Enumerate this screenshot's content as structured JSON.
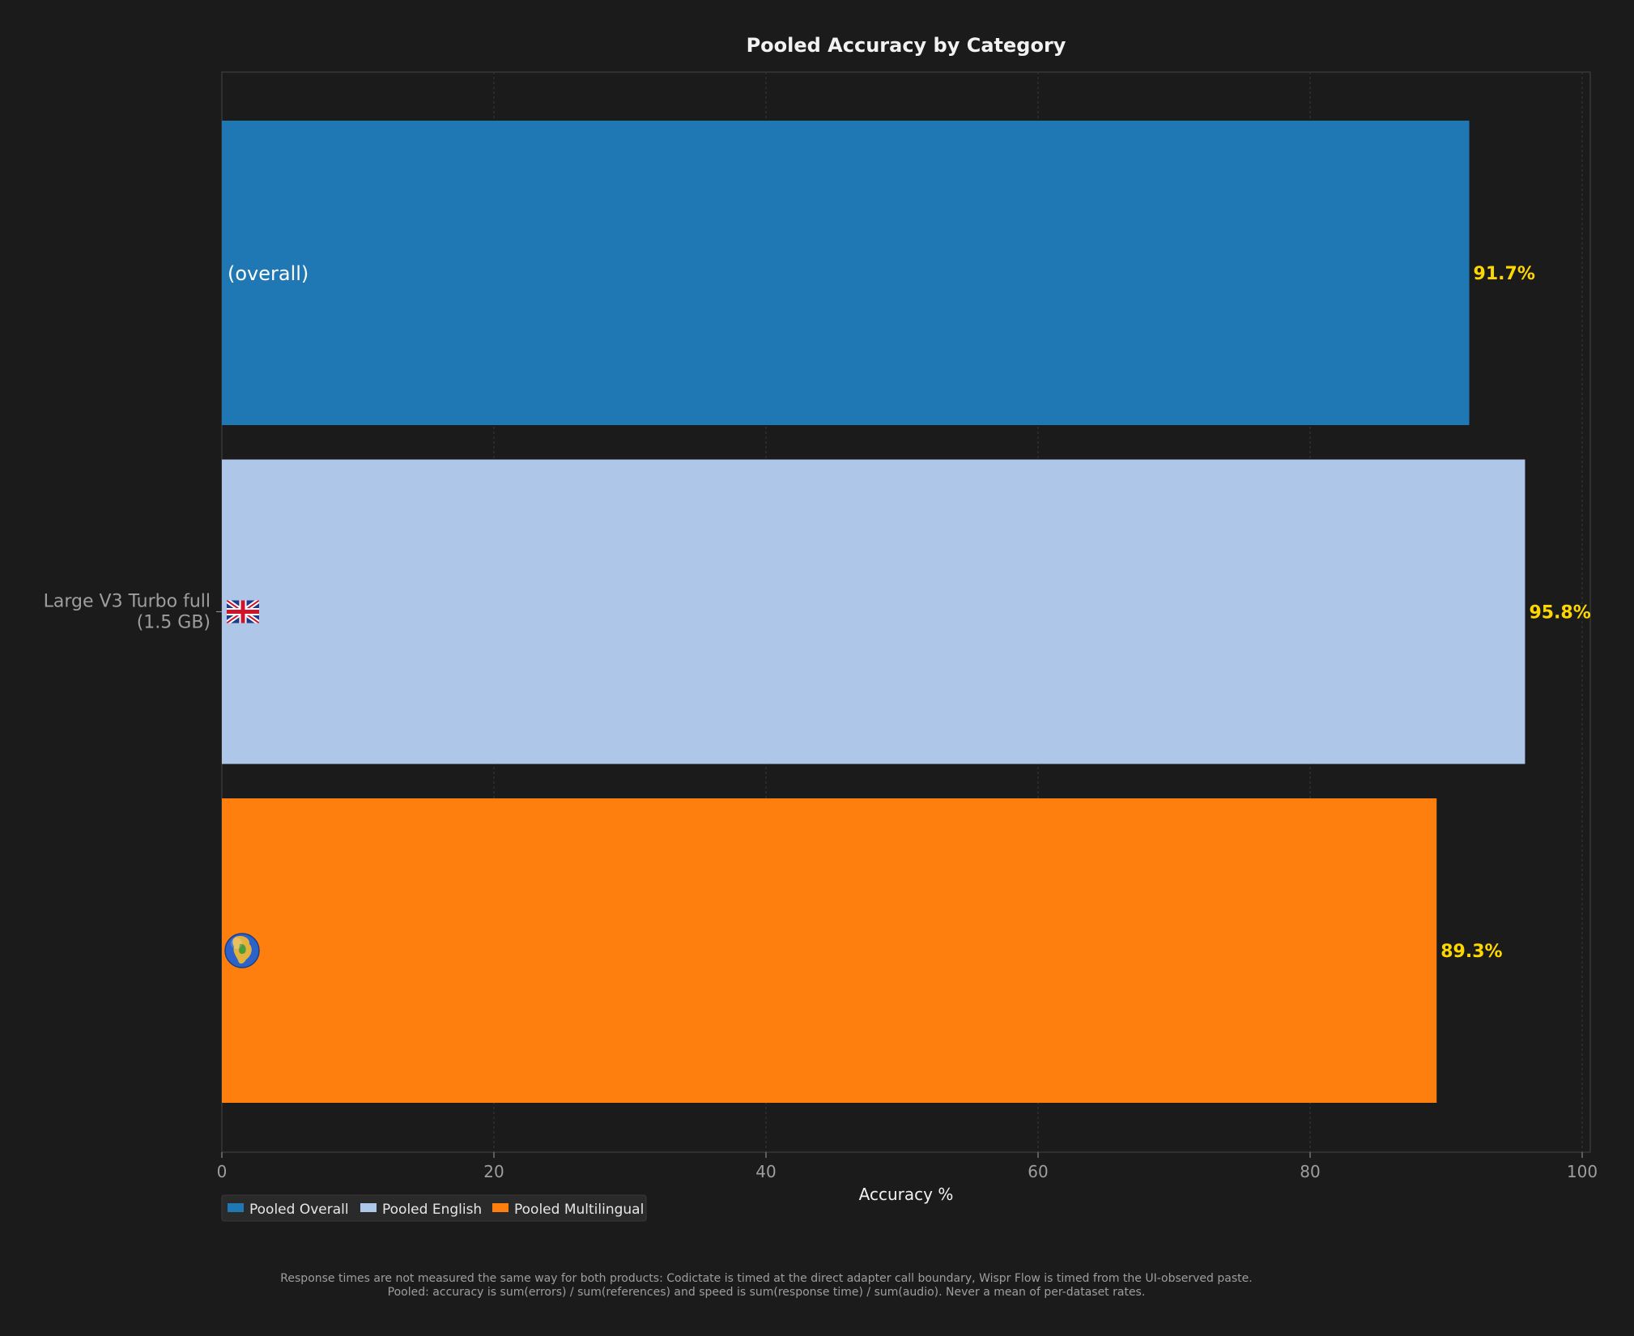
{
  "chart_data": {
    "type": "bar",
    "orientation": "horizontal",
    "title": "Pooled Accuracy by Category",
    "xlabel": "Accuracy %",
    "ylabel": "",
    "xlim": [
      0,
      100
    ],
    "xticks": [
      0,
      20,
      40,
      60,
      80,
      100
    ],
    "grid": true,
    "category_label": [
      "Large V3 Turbo full",
      "(1.5 GB)"
    ],
    "series": [
      {
        "name": "Pooled Overall",
        "value": 91.7,
        "value_label": "91.7%",
        "color": "#1f77b4",
        "bar_text": "(overall)",
        "icon": ""
      },
      {
        "name": "Pooled English",
        "value": 95.8,
        "value_label": "95.8%",
        "color": "#aec7e8",
        "bar_text": "",
        "icon": "uk-flag-icon"
      },
      {
        "name": "Pooled Multilingual",
        "value": 89.3,
        "value_label": "89.3%",
        "color": "#ff7f0e",
        "bar_text": "",
        "icon": "globe-icon"
      }
    ],
    "legend": {
      "placement": "bottom-left"
    },
    "value_label_color": "#ffd700"
  },
  "footnotes": [
    "Response times are not measured the same way for both products: Codictate is timed at the direct adapter call boundary, Wispr Flow is timed from the UI-observed paste.",
    "Pooled: accuracy is sum(errors) / sum(references) and speed is sum(response time) / sum(audio). Never a mean of per-dataset rates."
  ]
}
